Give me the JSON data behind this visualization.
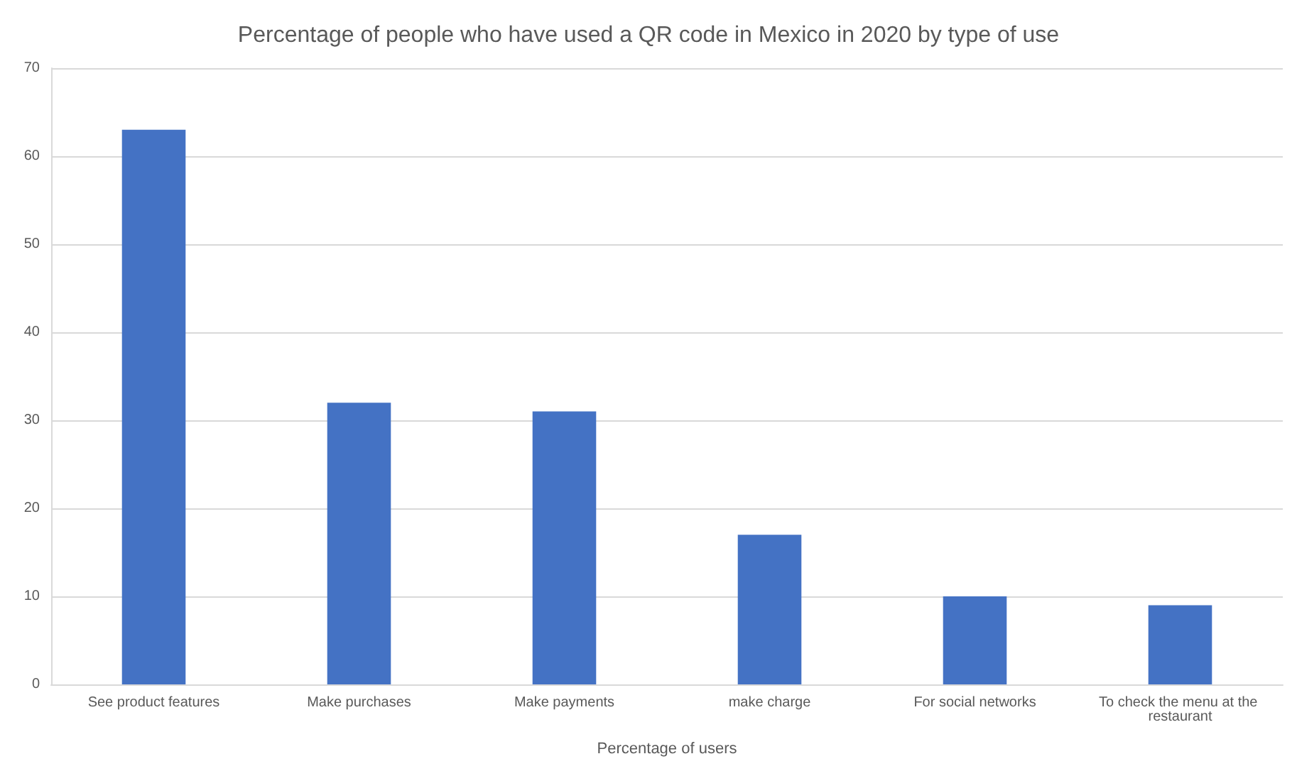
{
  "chart_data": {
    "type": "bar",
    "title": "Percentage of people who have used a QR code in Mexico in 2020 by type of use",
    "xlabel": "Percentage of users",
    "categories": [
      "See product features",
      "Make purchases",
      "Make payments",
      "make charge",
      "For social networks",
      "To check the menu at the restaurant"
    ],
    "values": [
      63,
      32,
      31,
      17,
      10,
      9
    ],
    "color": "#4472c4",
    "ylim": [
      0,
      70
    ],
    "yticks": [
      0,
      10,
      20,
      30,
      40,
      50,
      60,
      70
    ],
    "grid": "y"
  }
}
